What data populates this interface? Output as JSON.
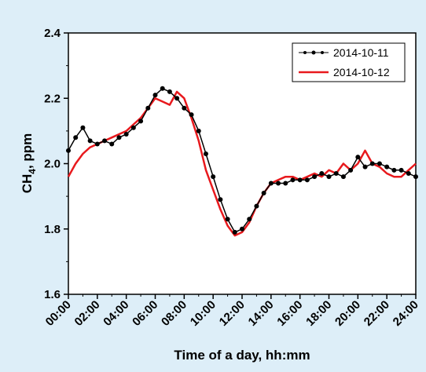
{
  "chart_data": {
    "type": "line",
    "title": "",
    "xlabel": "Time of a day, hh:mm",
    "ylabel_main": "CH",
    "ylabel_sub": "4",
    "ylabel_rest": ", ppm",
    "xlim": [
      0,
      24
    ],
    "ylim": [
      1.6,
      2.4
    ],
    "x_ticks": [
      0,
      2,
      4,
      6,
      8,
      10,
      12,
      14,
      16,
      18,
      20,
      22,
      24
    ],
    "x_tick_labels": [
      "00:00",
      "02:00",
      "04:00",
      "06:00",
      "08:00",
      "10:00",
      "12:00",
      "14:00",
      "16:00",
      "18:00",
      "20:00",
      "22:00",
      "24:00"
    ],
    "y_ticks": [
      1.6,
      1.8,
      2.0,
      2.2,
      2.4
    ],
    "y_tick_labels": [
      "1.6",
      "1.8",
      "2.0",
      "2.2",
      "2.4"
    ],
    "grid": false,
    "legend_position": "top-right",
    "series": [
      {
        "name": "2014-10-11",
        "color": "#000000",
        "marker": "dot",
        "x": [
          0,
          0.5,
          1.0,
          1.5,
          2.0,
          2.5,
          3.0,
          3.5,
          4.0,
          4.5,
          5.0,
          5.5,
          6.0,
          6.5,
          7.0,
          7.5,
          8.0,
          8.5,
          9.0,
          9.5,
          10.0,
          10.5,
          11.0,
          11.5,
          12.0,
          12.5,
          13.0,
          13.5,
          14.0,
          14.5,
          15.0,
          15.5,
          16.0,
          16.5,
          17.0,
          17.5,
          18.0,
          18.5,
          19.0,
          19.5,
          20.0,
          20.5,
          21.0,
          21.5,
          22.0,
          22.5,
          23.0,
          23.5,
          24.0
        ],
        "y": [
          2.04,
          2.08,
          2.11,
          2.07,
          2.06,
          2.07,
          2.06,
          2.08,
          2.09,
          2.11,
          2.13,
          2.17,
          2.21,
          2.23,
          2.22,
          2.2,
          2.17,
          2.15,
          2.1,
          2.03,
          1.96,
          1.89,
          1.83,
          1.79,
          1.8,
          1.83,
          1.87,
          1.91,
          1.94,
          1.94,
          1.94,
          1.95,
          1.95,
          1.95,
          1.96,
          1.97,
          1.96,
          1.97,
          1.96,
          1.98,
          2.02,
          1.99,
          2.0,
          2.0,
          1.99,
          1.98,
          1.98,
          1.97,
          1.96
        ]
      },
      {
        "name": "2014-10-12",
        "color": "#e8191d",
        "marker": "none",
        "x": [
          0,
          0.5,
          1.0,
          1.5,
          2.0,
          2.5,
          3.0,
          3.5,
          4.0,
          4.5,
          5.0,
          5.5,
          6.0,
          6.5,
          7.0,
          7.5,
          8.0,
          8.5,
          9.0,
          9.5,
          10.0,
          10.5,
          11.0,
          11.5,
          12.0,
          12.5,
          13.0,
          13.5,
          14.0,
          14.5,
          15.0,
          15.5,
          16.0,
          16.5,
          17.0,
          17.5,
          18.0,
          18.5,
          19.0,
          19.5,
          20.0,
          20.5,
          21.0,
          21.5,
          22.0,
          22.5,
          23.0,
          23.5,
          24.0
        ],
        "y": [
          1.96,
          2.0,
          2.03,
          2.05,
          2.06,
          2.07,
          2.08,
          2.09,
          2.1,
          2.12,
          2.14,
          2.17,
          2.2,
          2.19,
          2.18,
          2.22,
          2.2,
          2.14,
          2.07,
          1.98,
          1.92,
          1.86,
          1.81,
          1.78,
          1.79,
          1.82,
          1.87,
          1.91,
          1.94,
          1.95,
          1.96,
          1.96,
          1.95,
          1.96,
          1.97,
          1.96,
          1.98,
          1.97,
          2.0,
          1.98,
          2.0,
          2.04,
          2.0,
          1.99,
          1.97,
          1.96,
          1.96,
          1.98,
          2.0
        ]
      }
    ]
  }
}
